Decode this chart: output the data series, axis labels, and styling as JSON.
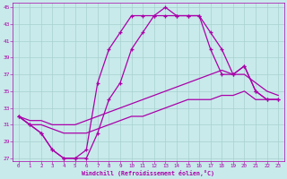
{
  "bg_color": "#c8eaea",
  "grid_color": "#a8d0d0",
  "line_color": "#aa00aa",
  "xlabel": "Windchill (Refroidissement éolien,°C)",
  "hours": [
    0,
    1,
    2,
    3,
    4,
    5,
    6,
    7,
    8,
    9,
    10,
    11,
    12,
    13,
    14,
    15,
    16,
    17,
    18,
    19,
    20,
    21,
    22,
    23
  ],
  "curve1": [
    32,
    31,
    30,
    28,
    27,
    27,
    28,
    36,
    40,
    42,
    44,
    44,
    44,
    45,
    44,
    44,
    44,
    42,
    40,
    37,
    38,
    35,
    34,
    34
  ],
  "curve2": [
    32,
    31,
    30,
    28,
    27,
    27,
    27,
    30,
    34,
    36,
    40,
    42,
    44,
    44,
    44,
    44,
    44,
    40,
    37,
    37,
    38,
    35,
    34,
    34
  ],
  "line_upper": [
    32,
    31.5,
    31.5,
    31,
    31,
    31,
    31.5,
    32,
    32.5,
    33,
    33.5,
    34,
    34.5,
    35,
    35.5,
    36,
    36.5,
    37,
    37.5,
    37,
    37,
    36,
    35,
    34.5
  ],
  "line_lower": [
    32,
    31,
    31,
    30.5,
    30,
    30,
    30,
    30.5,
    31,
    31.5,
    32,
    32,
    32.5,
    33,
    33.5,
    34,
    34,
    34,
    34.5,
    34.5,
    35,
    34,
    34,
    34
  ],
  "ylim_min": 27,
  "ylim_max": 45,
  "yticks": [
    27,
    29,
    31,
    33,
    35,
    37,
    39,
    41,
    43,
    45
  ],
  "xticks": [
    0,
    1,
    2,
    3,
    4,
    5,
    6,
    7,
    8,
    9,
    10,
    11,
    12,
    13,
    14,
    15,
    16,
    17,
    18,
    19,
    20,
    21,
    22,
    23
  ]
}
